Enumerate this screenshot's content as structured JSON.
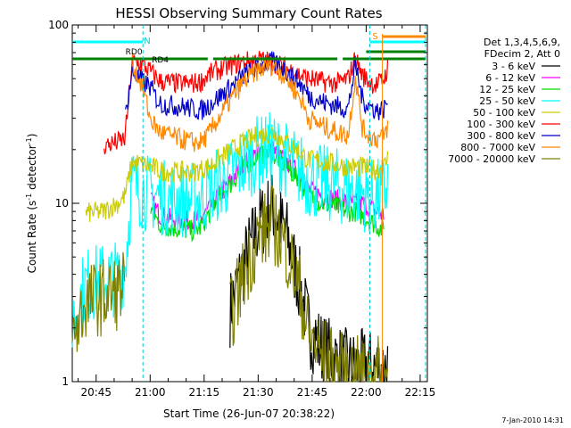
{
  "chart_data": {
    "type": "line",
    "title": "HESSI Observing Summary Count Rates",
    "xlabel": "Start Time (26-Jun-07 20:38:22)",
    "ylabel_main": "Count Rate (s",
    "ylabel_sup1": "-1",
    "ylabel_mid": " detector",
    "ylabel_sup2": "-1",
    "ylabel_end": ")",
    "y_scale": "log",
    "ylim": [
      1,
      100
    ],
    "xlim": [
      "20:38:22",
      "22:17:00"
    ],
    "x_ticks": [
      "20:45",
      "21:00",
      "21:15",
      "21:30",
      "21:45",
      "22:00",
      "22:15"
    ],
    "x_tick_minutes": [
      45,
      60,
      75,
      90,
      105,
      120,
      135
    ],
    "y_ticks": [
      "1",
      "10",
      "100"
    ],
    "y_tick_values": [
      1,
      10,
      100
    ],
    "legend_header": [
      "Det 1,3,4,5,6,9,",
      "FDecim 2, Att 0"
    ],
    "legend_position": "right",
    "timestamp": "7-Jan-2010 14:31",
    "x_minutes": [
      38.4,
      42,
      47,
      51,
      53,
      55,
      58,
      60,
      62,
      63,
      68,
      72,
      74,
      76,
      78,
      82,
      86,
      90,
      94,
      98,
      102,
      104,
      108,
      112,
      115,
      117,
      119,
      121,
      123,
      125,
      126
    ],
    "series": [
      {
        "name": "3 - 6 keV",
        "color": "#000000",
        "values": [
          0,
          0,
          0,
          0,
          0,
          0,
          0,
          0,
          0,
          0,
          0,
          0,
          0,
          0,
          0,
          2.5,
          4.5,
          7.5,
          9.5,
          6.5,
          3.2,
          2.0,
          1.5,
          1.3,
          1.2,
          1.2,
          1.2,
          1.2,
          1.2,
          1.2,
          1.2
        ]
      },
      {
        "name": "6 - 12 keV",
        "color": "#ff00ff",
        "values": [
          0,
          0,
          0,
          0,
          0,
          0,
          0,
          10.5,
          9.0,
          8.5,
          8.0,
          8.0,
          8.3,
          9.0,
          10.5,
          13,
          17,
          19,
          20,
          17,
          14,
          12,
          11,
          10.5,
          10,
          10,
          10,
          9.5,
          9,
          8.5,
          0
        ]
      },
      {
        "name": "12 - 25 keV",
        "color": "#00dd00",
        "values": [
          0,
          0,
          0,
          0,
          0,
          0,
          0,
          9.5,
          8.0,
          7.5,
          7.2,
          7.0,
          7.3,
          8.5,
          10,
          12.5,
          16,
          18.5,
          19,
          16,
          13,
          11,
          10,
          9.5,
          9,
          9,
          8.5,
          8,
          7.5,
          7,
          0
        ]
      },
      {
        "name": "25 - 50 keV",
        "color": "#00ffff",
        "values": [
          2.2,
          3.5,
          3.7,
          3.8,
          4.5,
          13,
          11.5,
          11.5,
          11.0,
          10.8,
          10.5,
          10.5,
          10.8,
          11.5,
          12.5,
          14,
          17,
          19,
          20,
          17.5,
          15,
          13.5,
          13,
          12.5,
          12,
          12,
          11.5,
          11,
          10.8,
          11.5,
          13
        ]
      },
      {
        "name": "50 - 100 keV",
        "color": "#cccc00",
        "values": [
          0,
          8.8,
          9.0,
          10.0,
          11.0,
          17,
          16.5,
          16.0,
          15.5,
          15.2,
          15,
          15,
          15.5,
          16,
          17,
          19.5,
          22,
          24,
          25,
          22,
          19,
          17.5,
          17,
          16.5,
          16,
          16,
          16,
          15.5,
          15.5,
          16,
          18
        ]
      },
      {
        "name": "100 - 300 keV",
        "color": "#ff0000",
        "values": [
          0,
          0,
          21,
          22,
          23,
          62,
          60,
          55,
          50,
          48,
          47,
          47,
          48,
          52,
          55,
          59,
          62,
          64,
          62,
          57,
          52,
          50,
          48,
          47,
          50,
          65,
          52,
          48,
          46,
          50,
          58
        ]
      },
      {
        "name": "300 - 800 keV",
        "color": "#0000cc",
        "values": [
          0,
          0,
          0,
          0,
          30,
          54,
          48,
          45,
          38,
          36,
          35,
          34,
          33,
          35,
          38,
          44,
          52,
          58,
          62,
          55,
          46,
          40,
          37,
          35,
          34,
          60,
          38,
          35,
          33,
          34,
          38
        ]
      },
      {
        "name": "800 - 7000 keV",
        "color": "#ff8800",
        "values": [
          0,
          0,
          0,
          0,
          0,
          62,
          44,
          30,
          26,
          25,
          23,
          22,
          22,
          24,
          28,
          37,
          48,
          56,
          60,
          50,
          38,
          30,
          27,
          25,
          24,
          52,
          26,
          24,
          23,
          24,
          27
        ]
      },
      {
        "name": "7000 - 20000 keV",
        "color": "#808000",
        "values": [
          1.7,
          2.8,
          3.0,
          3.2,
          3.5,
          0,
          0,
          0,
          0,
          0,
          0,
          0,
          0,
          0,
          0,
          2.2,
          4.0,
          6.5,
          7.8,
          5.5,
          3.0,
          1.8,
          1.4,
          1.2,
          1.1,
          1.1,
          1.1,
          1.1,
          1.1,
          1.1,
          1.1
        ]
      }
    ],
    "annotations": {
      "green_bars": [
        {
          "start_min": 38.4,
          "end_min": 76.0,
          "label": ""
        },
        {
          "start_min": 77.5,
          "end_min": 112.0,
          "label": ""
        },
        {
          "start_min": 113.5,
          "end_min": 136.5,
          "label": ""
        }
      ],
      "cyan_bar": {
        "start_min": 38.4,
        "end_min": 58.0,
        "label": "N"
      },
      "cyan_bar2": {
        "start_min": 121.0,
        "end_min": 136.5,
        "label": "S"
      },
      "orange_bar": {
        "start_min": 124.5,
        "end_min": 136.5
      },
      "cyan_dashed_lines_min": [
        58.0,
        121.0,
        136.5
      ],
      "orange_vline_min": 124.5,
      "rd_labels": [
        {
          "text": "RD0",
          "min": 55.5
        },
        {
          "text": "RD4",
          "min": 62.8
        }
      ]
    }
  }
}
